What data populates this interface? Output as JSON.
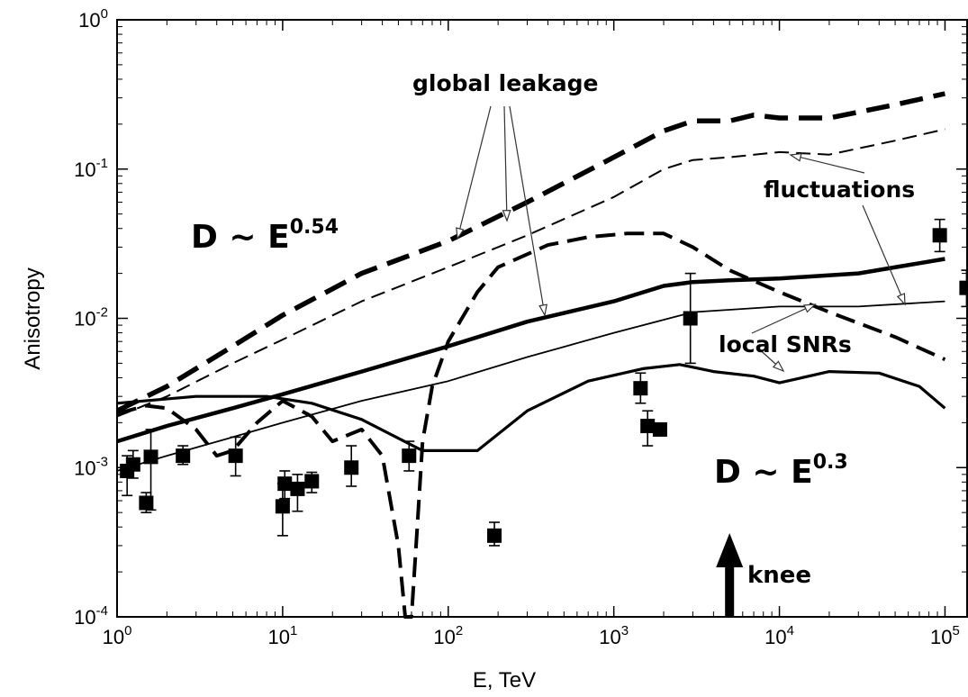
{
  "chart_data": {
    "type": "line",
    "xlabel": "E, TeV",
    "ylabel": "Anisotropy",
    "xscale": "log",
    "yscale": "log",
    "xlim": [
      1,
      136000
    ],
    "ylim": [
      0.0001,
      1
    ],
    "x_ticks": [
      {
        "base": "10",
        "exp": "0",
        "value": 1
      },
      {
        "base": "10",
        "exp": "1",
        "value": 10
      },
      {
        "base": "10",
        "exp": "2",
        "value": 100
      },
      {
        "base": "10",
        "exp": "3",
        "value": 1000
      },
      {
        "base": "10",
        "exp": "4",
        "value": 10000
      },
      {
        "base": "10",
        "exp": "5",
        "value": 100000
      }
    ],
    "y_ticks": [
      {
        "base": "10",
        "exp": "0",
        "value": 1
      },
      {
        "base": "10",
        "exp": "-1",
        "value": 0.1
      },
      {
        "base": "10",
        "exp": "-2",
        "value": 0.01
      },
      {
        "base": "10",
        "exp": "-3",
        "value": 0.001
      },
      {
        "base": "10",
        "exp": "-4",
        "value": 0.0001
      }
    ],
    "annotations": {
      "global_leakage": "global leakage",
      "fluctuations": "fluctuations",
      "local_snrs": "local SNRs",
      "d_high_base": "D ~ E",
      "d_high_exp": "0.54",
      "d_low_base": "D ~ E",
      "d_low_exp": "0.3",
      "knee": "knee"
    },
    "knee_energy": 5000,
    "series": [
      {
        "style": "thick-dashed",
        "points": [
          [
            1,
            0.0024
          ],
          [
            2,
            0.0035
          ],
          [
            5,
            0.0065
          ],
          [
            10,
            0.0105
          ],
          [
            30,
            0.02
          ],
          [
            100,
            0.033
          ],
          [
            300,
            0.06
          ],
          [
            1000,
            0.12
          ],
          [
            2000,
            0.18
          ],
          [
            3000,
            0.21
          ],
          [
            5000,
            0.21
          ],
          [
            7000,
            0.23
          ],
          [
            10000,
            0.22
          ],
          [
            20000,
            0.22
          ],
          [
            50000,
            0.27
          ],
          [
            100000,
            0.32
          ]
        ]
      },
      {
        "style": "thin-dashed",
        "points": [
          [
            1,
            0.0022
          ],
          [
            2,
            0.003
          ],
          [
            5,
            0.005
          ],
          [
            10,
            0.0072
          ],
          [
            30,
            0.013
          ],
          [
            100,
            0.022
          ],
          [
            300,
            0.036
          ],
          [
            1000,
            0.065
          ],
          [
            2000,
            0.1
          ],
          [
            3000,
            0.115
          ],
          [
            5000,
            0.12
          ],
          [
            10000,
            0.13
          ],
          [
            20000,
            0.125
          ],
          [
            50000,
            0.155
          ],
          [
            100000,
            0.185
          ]
        ]
      },
      {
        "style": "thick-solid",
        "points": [
          [
            1,
            0.0015
          ],
          [
            2,
            0.0019
          ],
          [
            5,
            0.0025
          ],
          [
            10,
            0.0031
          ],
          [
            30,
            0.0044
          ],
          [
            100,
            0.0065
          ],
          [
            300,
            0.0095
          ],
          [
            1000,
            0.013
          ],
          [
            2000,
            0.0165
          ],
          [
            3000,
            0.0175
          ],
          [
            5000,
            0.018
          ],
          [
            10000,
            0.0185
          ],
          [
            30000,
            0.02
          ],
          [
            100000,
            0.025
          ]
        ]
      },
      {
        "style": "thin-solid",
        "points": [
          [
            1,
            0.00095
          ],
          [
            2,
            0.0012
          ],
          [
            5,
            0.0016
          ],
          [
            10,
            0.002
          ],
          [
            30,
            0.0028
          ],
          [
            100,
            0.0038
          ],
          [
            300,
            0.0055
          ],
          [
            1000,
            0.008
          ],
          [
            3000,
            0.011
          ],
          [
            10000,
            0.012
          ],
          [
            30000,
            0.012
          ],
          [
            100000,
            0.013
          ]
        ]
      },
      {
        "style": "thick-dashed-local",
        "points": [
          [
            1,
            0.0023
          ],
          [
            1.5,
            0.0026
          ],
          [
            2,
            0.0025
          ],
          [
            3,
            0.0018
          ],
          [
            4,
            0.0012
          ],
          [
            5,
            0.0013
          ],
          [
            7,
            0.002
          ],
          [
            10,
            0.0028
          ],
          [
            15,
            0.0022
          ],
          [
            20,
            0.0015
          ],
          [
            30,
            0.0018
          ],
          [
            40,
            0.0012
          ],
          [
            50,
            0.0003
          ],
          [
            55,
            0.0001
          ],
          [
            60,
            0.0001
          ],
          [
            65,
            0.0004
          ],
          [
            70,
            0.0015
          ],
          [
            80,
            0.0035
          ],
          [
            100,
            0.007
          ],
          [
            150,
            0.015
          ],
          [
            200,
            0.022
          ],
          [
            400,
            0.031
          ],
          [
            700,
            0.035
          ],
          [
            1200,
            0.037
          ],
          [
            2000,
            0.037
          ],
          [
            3000,
            0.03
          ],
          [
            5000,
            0.021
          ],
          [
            10000,
            0.015
          ],
          [
            20000,
            0.011
          ],
          [
            50000,
            0.0075
          ],
          [
            100000,
            0.0053
          ]
        ]
      },
      {
        "style": "thick-solid-local",
        "points": [
          [
            1,
            0.0027
          ],
          [
            3,
            0.003
          ],
          [
            8,
            0.003
          ],
          [
            15,
            0.0027
          ],
          [
            30,
            0.0021
          ],
          [
            70,
            0.0013
          ],
          [
            150,
            0.0013
          ],
          [
            300,
            0.0024
          ],
          [
            700,
            0.0038
          ],
          [
            1500,
            0.0046
          ],
          [
            2500,
            0.0049
          ],
          [
            4000,
            0.0044
          ],
          [
            7000,
            0.0041
          ],
          [
            10000,
            0.0037
          ],
          [
            20000,
            0.0044
          ],
          [
            40000,
            0.0043
          ],
          [
            70000,
            0.0035
          ],
          [
            100000,
            0.0025
          ]
        ]
      }
    ],
    "observations": [
      {
        "x": 1.15,
        "y": 0.00095,
        "lo": 0.00065,
        "hi": 0.0012
      },
      {
        "x": 1.25,
        "y": 0.00105,
        "lo": 0.00085,
        "hi": 0.0013
      },
      {
        "x": 1.5,
        "y": 0.00058,
        "lo": 0.0005,
        "hi": 0.00068
      },
      {
        "x": 1.6,
        "y": 0.00118,
        "lo": 0.00052,
        "hi": 0.0018
      },
      {
        "x": 2.5,
        "y": 0.0012,
        "lo": 0.00105,
        "hi": 0.0014
      },
      {
        "x": 5.2,
        "y": 0.0012,
        "lo": 0.00088,
        "hi": 0.0016
      },
      {
        "x": 10,
        "y": 0.00055,
        "lo": 0.00035,
        "hi": 0.00078
      },
      {
        "x": 10.3,
        "y": 0.00078,
        "lo": 0.00062,
        "hi": 0.00095
      },
      {
        "x": 12.3,
        "y": 0.00072,
        "lo": 0.00051,
        "hi": 0.0009
      },
      {
        "x": 15,
        "y": 0.00081,
        "lo": 0.00068,
        "hi": 0.00093
      },
      {
        "x": 26,
        "y": 0.001,
        "lo": 0.00075,
        "hi": 0.0014
      },
      {
        "x": 58,
        "y": 0.0012,
        "lo": 0.00095,
        "hi": 0.0015
      },
      {
        "x": 190,
        "y": 0.00035,
        "lo": 0.0003,
        "hi": 0.00043
      },
      {
        "x": 1450,
        "y": 0.0034,
        "lo": 0.0027,
        "hi": 0.0043
      },
      {
        "x": 1600,
        "y": 0.0019,
        "lo": 0.0014,
        "hi": 0.0024
      },
      {
        "x": 1900,
        "y": 0.0018,
        "lo": 0.0017,
        "hi": 0.0019
      },
      {
        "x": 2900,
        "y": 0.01,
        "lo": 0.005,
        "hi": 0.02
      },
      {
        "x": 93000,
        "y": 0.036,
        "lo": 0.028,
        "hi": 0.046
      },
      {
        "x": 135000,
        "y": 0.016,
        "lo": 0.012,
        "hi": 0.021
      }
    ]
  }
}
